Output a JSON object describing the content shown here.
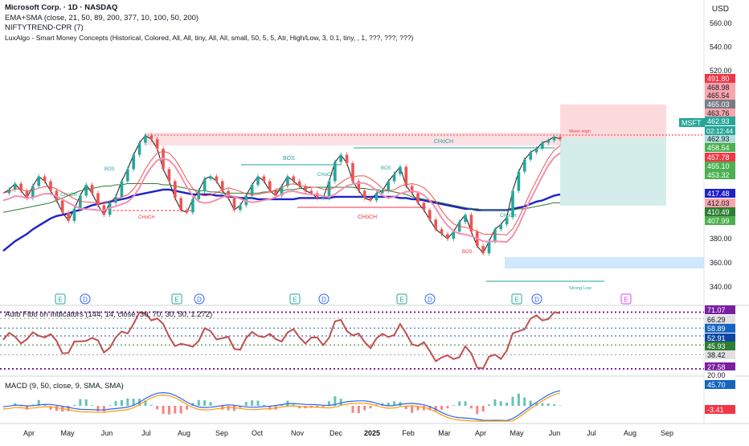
{
  "header": {
    "title": "Microsoft Corp. · 1D · NASDAQ",
    "line1": "EMA+SMA (close, 21, 50, 89, 200, 377, 10, 100, 50, 200)",
    "line2": "NIFTYTREND-CPR  (7)",
    "line3": "LuxAlgo - Smart Money Concepts (Historical, Colored, All, All, tiny, All, All, small, 50, 5, 5, Atr, High/Low, 3, 0.1, tiny, , 1, ???, ???, ???)"
  },
  "currency": "USD",
  "symbol_tag": "MSFT",
  "countdown": "02:12:44",
  "price_axis_ticks": [
    "560.00",
    "540.00",
    "520.00",
    "380.00",
    "360.00",
    "340.00"
  ],
  "price_badges": [
    {
      "text": "491.80",
      "color": "#f23645"
    },
    {
      "text": "468.98",
      "color": "#f7a6ae"
    },
    {
      "text": "465.54",
      "color": "#f7a6ae"
    },
    {
      "text": "465.03",
      "color": "#787b86"
    },
    {
      "text": "463.76",
      "color": "#f7a6ae"
    },
    {
      "text": "462.93",
      "color": "#26a69a"
    },
    {
      "text": "462.93",
      "color": "#b2dfdb"
    },
    {
      "text": "458.54",
      "color": "#4caf50"
    },
    {
      "text": "457.78",
      "color": "#f23645"
    },
    {
      "text": "455.10",
      "color": "#4caf50"
    },
    {
      "text": "453.32",
      "color": "#4caf50"
    },
    {
      "text": "417.48",
      "color": "#1e22c8"
    },
    {
      "text": "412.03",
      "color": "#f7a6ae"
    },
    {
      "text": "410.49",
      "color": "#2e7d32"
    },
    {
      "text": "407.99",
      "color": "#4caf50"
    }
  ],
  "smc_labels": {
    "bos": "BOS",
    "choch": "CHoCH",
    "week_high": "Week High",
    "strong_low": "Strong Low"
  },
  "event_markers": {
    "earnings": "E",
    "dividends": "D"
  },
  "rsi_panel": {
    "label": "Auto Fibo on Indicators (144, 14, close, 30, 70, 30, 50, 1.272)",
    "badges": [
      {
        "text": "71.07",
        "color": "#7b1fa2"
      },
      {
        "text": "66.29",
        "color": "#e0e0e0"
      },
      {
        "text": "58.89",
        "color": "#1565c0"
      },
      {
        "text": "52.91",
        "color": "#0d47a1"
      },
      {
        "text": "45.93",
        "color": "#2e7d32"
      },
      {
        "text": "38.42",
        "color": "#e0e0e0"
      },
      {
        "text": "27.58",
        "color": "#7b1fa2"
      },
      {
        "text": "20.00",
        "color": "#ffffff"
      }
    ]
  },
  "macd_panel": {
    "label": "MACD (9, 50, close, 9, SMA, SMA)",
    "badges": [
      {
        "text": "45.70",
        "color": "#1565c0"
      },
      {
        "text": "-3.41",
        "color": "#f23645"
      }
    ]
  },
  "time_axis": [
    "Apr",
    "May",
    "Jun",
    "Jul",
    "Aug",
    "Sep",
    "Oct",
    "Nov",
    "Dec",
    "2025",
    "Feb",
    "Mar",
    "Apr",
    "May",
    "Jun",
    "Jul",
    "Aug",
    "Sep"
  ],
  "chart_data": {
    "type": "line",
    "symbol": "MSFT",
    "price_range": [
      330,
      565
    ],
    "x_axis_labels": [
      "Apr",
      "May",
      "Jun",
      "Jul",
      "Aug",
      "Sep",
      "Oct",
      "Nov",
      "Dec",
      "2025",
      "Feb",
      "Mar",
      "Apr",
      "May",
      "Jun",
      "Jul",
      "Aug",
      "Sep"
    ],
    "series": [
      {
        "values": [
          418,
          421,
          426,
          420,
          414,
          424,
          432,
          428,
          420,
          412,
          402,
          395,
          405,
          416,
          425,
          418,
          408,
          400,
          410,
          415,
          428,
          438,
          450,
          460,
          466,
          463,
          455,
          438,
          428,
          414,
          404,
          402,
          413,
          420,
          430,
          432,
          428,
          420,
          414,
          404,
          408,
          416,
          425,
          432,
          428,
          420,
          416,
          424,
          432,
          428,
          424,
          420,
          418,
          414,
          414,
          428,
          444,
          450,
          443,
          428,
          420,
          414,
          412,
          418,
          420,
          428,
          434,
          440,
          424,
          418,
          410,
          404,
          396,
          388,
          384,
          380,
          386,
          394,
          400,
          386,
          374,
          368,
          378,
          388,
          392,
          398,
          420,
          436,
          446,
          452,
          455,
          460,
          462,
          465,
          463
        ]
      },
      {
        "name": "EMA 200",
        "values": [
          370,
          374,
          378,
          381,
          384,
          388,
          391,
          394,
          397,
          399,
          400,
          401,
          403,
          404,
          406,
          408,
          409,
          410,
          411,
          412,
          413,
          414,
          416,
          417,
          418,
          419,
          420,
          421,
          421,
          420,
          419,
          418,
          417,
          417,
          417,
          417,
          416,
          416,
          415,
          415,
          414,
          414,
          414,
          413,
          413,
          413,
          413,
          413,
          413,
          413,
          414,
          414,
          414,
          414,
          414,
          414,
          415,
          415,
          415,
          415,
          415,
          415,
          415,
          415,
          415,
          415,
          415,
          414,
          414,
          413,
          413,
          412,
          411,
          410,
          409,
          408,
          407,
          406,
          405,
          405,
          404,
          404,
          404,
          404,
          404,
          404,
          405,
          406,
          407,
          409,
          411,
          412,
          414,
          416,
          417
        ]
      },
      {
        "name": "SMA 200",
        "values": [
          402,
          403,
          404,
          405,
          406,
          407,
          408,
          409,
          410,
          412,
          414,
          416,
          418,
          420,
          421,
          422,
          423,
          424,
          424,
          425,
          425,
          426,
          426,
          426,
          426,
          426,
          426,
          425,
          425,
          424,
          423,
          422,
          421,
          420,
          420,
          419,
          419,
          418,
          418,
          418,
          418,
          418,
          418,
          418,
          419,
          419,
          420,
          420,
          421,
          421,
          422,
          422,
          423,
          423,
          423,
          423,
          423,
          423,
          423,
          423,
          422,
          422,
          421,
          421,
          420,
          420,
          419,
          418,
          417,
          415,
          414,
          413,
          412,
          411,
          410,
          409,
          408,
          407,
          406,
          405,
          405,
          404,
          404,
          404,
          404,
          404,
          404,
          405,
          405,
          406,
          407,
          408,
          409,
          410,
          410
        ]
      }
    ],
    "rsi_levels": [
      71.07,
      66.29,
      58.89,
      52.91,
      45.93,
      38.42,
      27.58,
      20.0
    ],
    "macd_last": {
      "macd": 45.7,
      "histogram": -3.41
    },
    "annotations": [
      "BOS",
      "CHoCH",
      "Week High",
      "Strong Low"
    ]
  }
}
